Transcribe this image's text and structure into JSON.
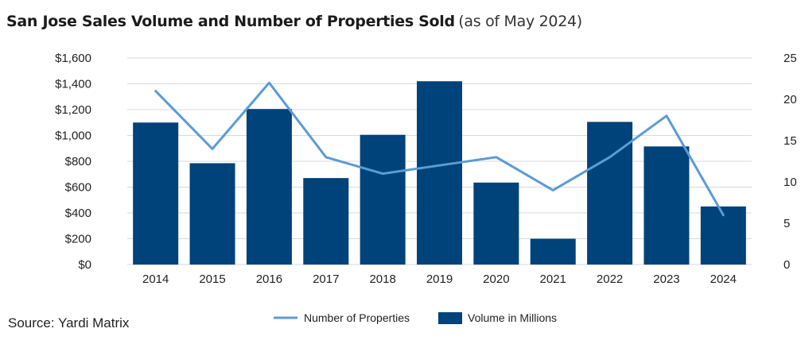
{
  "title": "San Jose Sales Volume and Number of Properties Sold",
  "subtitle": "(as of May 2024)",
  "source": "Source: Yardi Matrix",
  "colors": {
    "bar": "#00427a",
    "line": "#5b9bd5",
    "grid": "#d9d9d9",
    "text": "#222222"
  },
  "chart_data": {
    "type": "bar",
    "categories": [
      "2014",
      "2015",
      "2016",
      "2017",
      "2018",
      "2019",
      "2020",
      "2021",
      "2022",
      "2023",
      "2024"
    ],
    "series": [
      {
        "name": "Volume in Millions",
        "type": "bar",
        "axis": "left",
        "values": [
          1100,
          785,
          1205,
          670,
          1005,
          1420,
          635,
          200,
          1105,
          915,
          450
        ]
      },
      {
        "name": "Number of Properties",
        "type": "line",
        "axis": "right",
        "values": [
          21,
          14,
          22,
          13,
          11,
          12,
          13,
          9,
          13,
          18,
          6
        ]
      }
    ],
    "y_left": {
      "min": 0,
      "max": 1600,
      "step": 200,
      "tick_labels": [
        "$0",
        "$200",
        "$400",
        "$600",
        "$800",
        "$1,000",
        "$1,200",
        "$1,400",
        "$1,600"
      ]
    },
    "y_right": {
      "min": 0,
      "max": 25,
      "step": 5,
      "tick_labels": [
        "0",
        "5",
        "10",
        "15",
        "20",
        "25"
      ]
    },
    "grid": true,
    "legend_position": "bottom",
    "legend": [
      "Number of Properties",
      "Volume in Millions"
    ]
  }
}
